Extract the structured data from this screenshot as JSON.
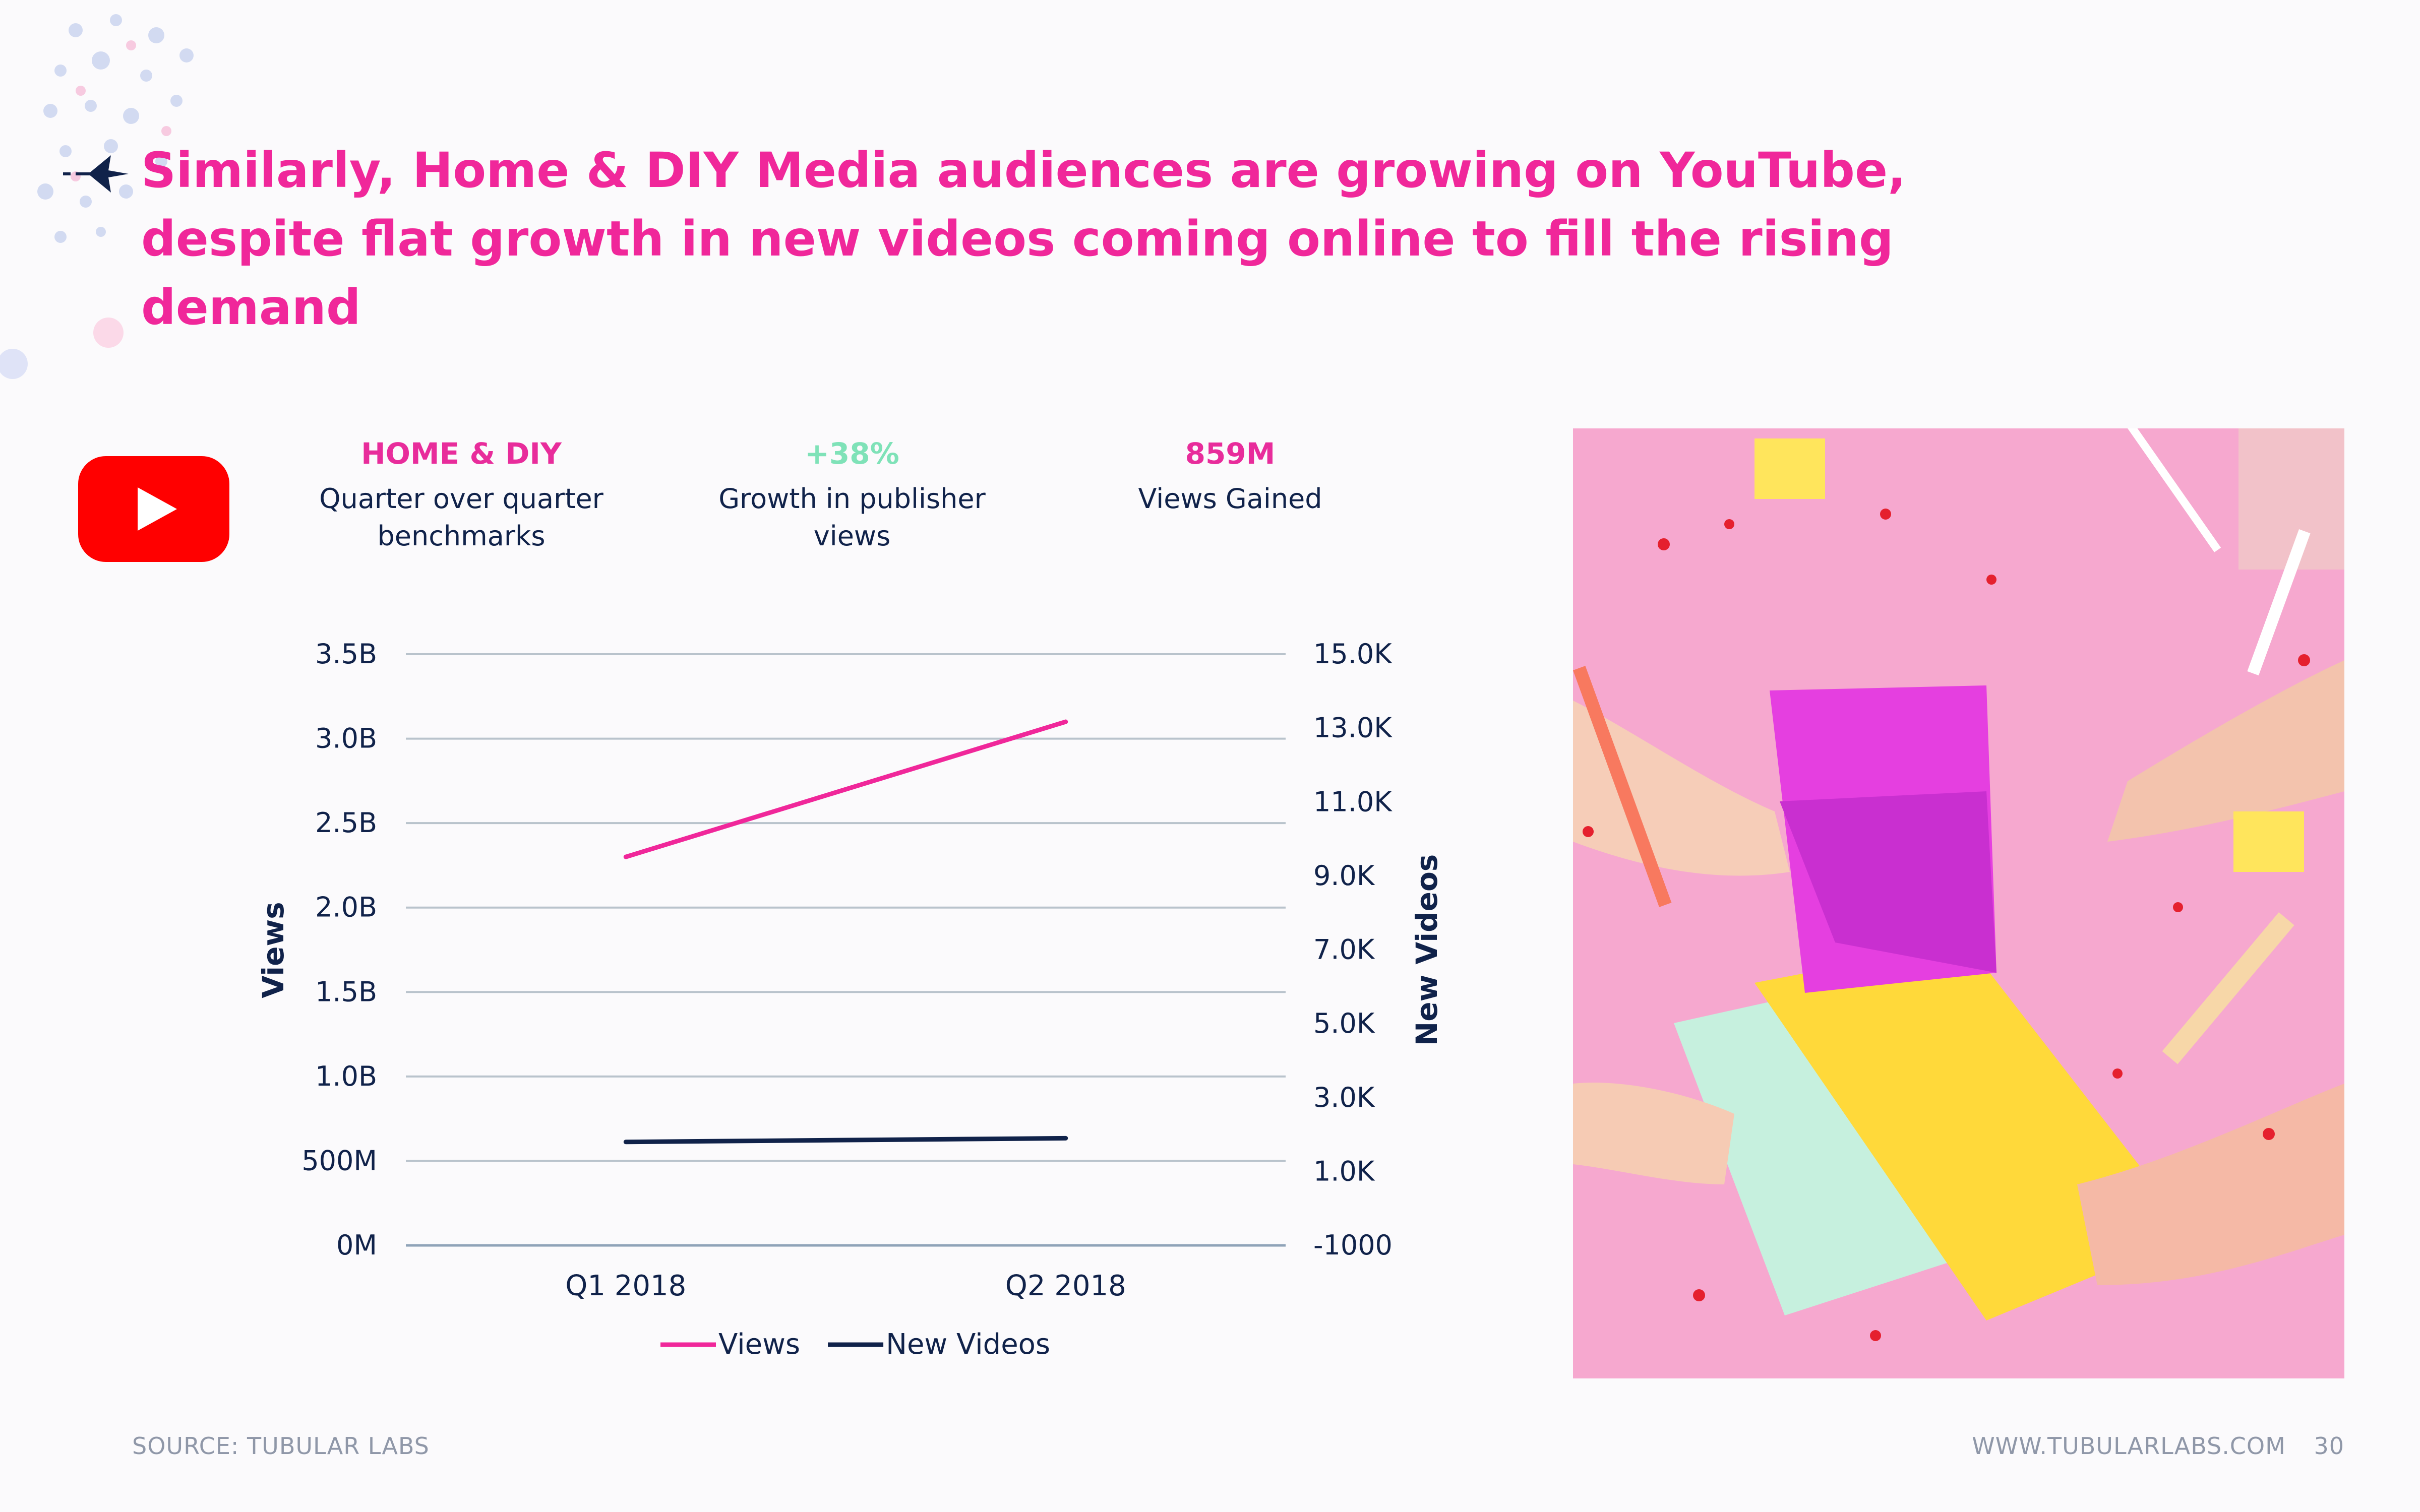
{
  "slide": {
    "title": "Similarly, Home & DIY Media audiences are growing on YouTube, despite flat growth in new videos coming online to fill the rising demand",
    "source": "SOURCE: TUBULAR LABS",
    "url": "WWW.TUBULARLABS.COM",
    "page_number": "30"
  },
  "icons": {
    "title_bullet": "arrow-star-icon",
    "platform": "youtube-logo"
  },
  "colors": {
    "accent_pink": "#f0279a",
    "accent_mint": "#7fe2b8",
    "navy": "#10224a",
    "youtube_red": "#ff0000"
  },
  "stats": [
    {
      "headline": "HOME & DIY",
      "description": "Quarter over quarter benchmarks"
    },
    {
      "headline": "+38%",
      "description": "Growth in publisher views"
    },
    {
      "headline": "859M",
      "description": "Views Gained"
    }
  ],
  "chart_data": {
    "type": "line",
    "categories": [
      "Q1 2018",
      "Q2 2018"
    ],
    "ylabel": "Views",
    "y2label": "New Videos",
    "ylim": [
      0,
      3500000000
    ],
    "y2lim": [
      -1000,
      15000
    ],
    "yticks": [
      "0M",
      "500M",
      "1.0B",
      "1.5B",
      "2.0B",
      "2.5B",
      "3.0B",
      "3.5B"
    ],
    "y2ticks": [
      "-1000",
      "1.0K",
      "3.0K",
      "5.0K",
      "7.0K",
      "9.0K",
      "11.0K",
      "13.0K",
      "15.0K"
    ],
    "grid": true,
    "legend_position": "bottom",
    "series": [
      {
        "name": "Views",
        "axis": "left",
        "color": "#f0279a",
        "values": [
          2300000000,
          3100000000
        ]
      },
      {
        "name": "New Videos",
        "axis": "right",
        "color": "#10224a",
        "values": [
          1800,
          1900
        ]
      }
    ]
  }
}
